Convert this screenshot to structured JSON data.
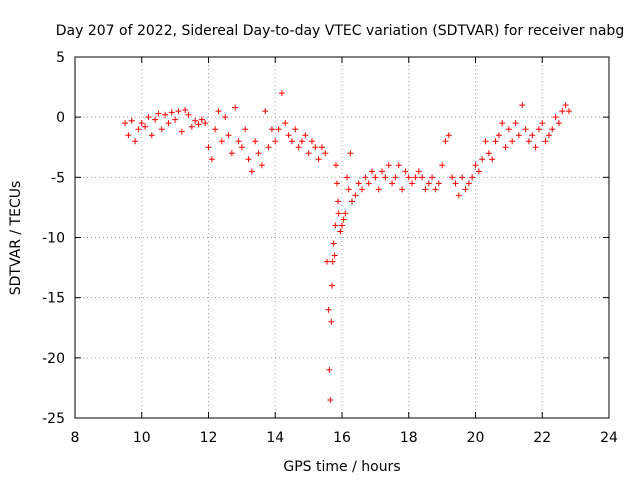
{
  "chart_data": {
    "type": "scatter",
    "title": "Day 207 of 2022, Sidereal Day-to-day VTEC variation (SDTVAR) for receiver nabg",
    "xlabel": "GPS time / hours",
    "ylabel": "SDTVAR / TECUs",
    "xlim": [
      8,
      24
    ],
    "ylim": [
      -25,
      5
    ],
    "xticks": [
      8,
      10,
      12,
      14,
      16,
      18,
      20,
      22,
      24
    ],
    "yticks": [
      5,
      0,
      -5,
      -10,
      -15,
      -20,
      -25
    ],
    "grid": true,
    "marker": "plus",
    "color": "#ff0000",
    "series": [
      {
        "name": "SDTVAR",
        "x": [
          9.5,
          9.6,
          9.7,
          9.8,
          9.9,
          10.0,
          10.1,
          10.2,
          10.3,
          10.4,
          10.5,
          10.6,
          10.7,
          10.8,
          10.9,
          11.0,
          11.1,
          11.2,
          11.3,
          11.4,
          11.5,
          11.6,
          11.7,
          11.8,
          11.9,
          12.0,
          12.1,
          12.2,
          12.3,
          12.4,
          12.5,
          12.6,
          12.7,
          12.8,
          12.9,
          13.0,
          13.1,
          13.2,
          13.3,
          13.4,
          13.5,
          13.6,
          13.7,
          13.8,
          13.9,
          14.0,
          14.1,
          14.2,
          14.3,
          14.4,
          14.5,
          14.6,
          14.7,
          14.8,
          14.9,
          15.0,
          15.1,
          15.2,
          15.3,
          15.4,
          15.5,
          15.55,
          15.6,
          15.62,
          15.65,
          15.68,
          15.7,
          15.72,
          15.75,
          15.78,
          15.8,
          15.82,
          15.85,
          15.88,
          15.9,
          15.95,
          16.0,
          16.05,
          16.1,
          16.15,
          16.2,
          16.25,
          16.3,
          16.4,
          16.5,
          16.6,
          16.7,
          16.8,
          16.9,
          17.0,
          17.1,
          17.2,
          17.3,
          17.4,
          17.5,
          17.6,
          17.7,
          17.8,
          17.9,
          18.0,
          18.1,
          18.2,
          18.3,
          18.4,
          18.5,
          18.6,
          18.7,
          18.8,
          18.9,
          19.0,
          19.1,
          19.2,
          19.3,
          19.4,
          19.5,
          19.6,
          19.7,
          19.8,
          19.9,
          20.0,
          20.1,
          20.2,
          20.3,
          20.4,
          20.5,
          20.6,
          20.7,
          20.8,
          20.9,
          21.0,
          21.1,
          21.2,
          21.3,
          21.4,
          21.5,
          21.6,
          21.7,
          21.8,
          21.9,
          22.0,
          22.1,
          22.2,
          22.3,
          22.4,
          22.5,
          22.6,
          22.7,
          22.8
        ],
        "y": [
          -0.5,
          -1.5,
          -0.3,
          -2.0,
          -1.0,
          -0.5,
          -0.8,
          0.0,
          -1.5,
          -0.2,
          0.3,
          -1.0,
          0.2,
          -0.5,
          0.4,
          -0.2,
          0.5,
          -1.2,
          0.6,
          0.2,
          -0.8,
          -0.3,
          -0.6,
          -0.2,
          -0.5,
          -2.5,
          -3.5,
          -1.0,
          0.5,
          -2.0,
          0.0,
          -1.5,
          -3.0,
          0.8,
          -2.0,
          -2.5,
          -1.0,
          -3.5,
          -4.5,
          -2.0,
          -3.0,
          -4.0,
          0.5,
          -2.5,
          -1.0,
          -2.0,
          -1.0,
          2.0,
          -0.5,
          -1.5,
          -2.0,
          -1.0,
          -2.5,
          -2.0,
          -1.5,
          -3.0,
          -2.0,
          -2.5,
          -3.5,
          -2.5,
          -3.0,
          -12.0,
          -16.0,
          -21.0,
          -23.5,
          -17.0,
          -14.0,
          -12.0,
          -10.5,
          -11.5,
          -9.0,
          -4.0,
          -5.5,
          -7.0,
          -8.0,
          -9.5,
          -9.0,
          -8.5,
          -8.0,
          -5.0,
          -6.0,
          -3.0,
          -7.0,
          -6.5,
          -5.5,
          -6.0,
          -5.0,
          -5.5,
          -4.5,
          -5.0,
          -6.0,
          -4.5,
          -5.0,
          -4.0,
          -5.5,
          -5.0,
          -4.0,
          -6.0,
          -4.5,
          -5.0,
          -5.5,
          -5.0,
          -4.5,
          -5.0,
          -6.0,
          -5.5,
          -5.0,
          -6.0,
          -5.5,
          -4.0,
          -2.0,
          -1.5,
          -5.0,
          -5.5,
          -6.5,
          -5.0,
          -6.0,
          -5.5,
          -5.0,
          -4.0,
          -4.5,
          -3.5,
          -2.0,
          -3.0,
          -3.5,
          -2.0,
          -1.5,
          -0.5,
          -2.5,
          -1.0,
          -2.0,
          -0.5,
          -1.5,
          1.0,
          -1.0,
          -2.0,
          -1.5,
          -2.5,
          -1.0,
          -0.5,
          -2.0,
          -1.5,
          -1.0,
          0.0,
          -0.5,
          0.5,
          1.0,
          0.5
        ]
      }
    ]
  }
}
